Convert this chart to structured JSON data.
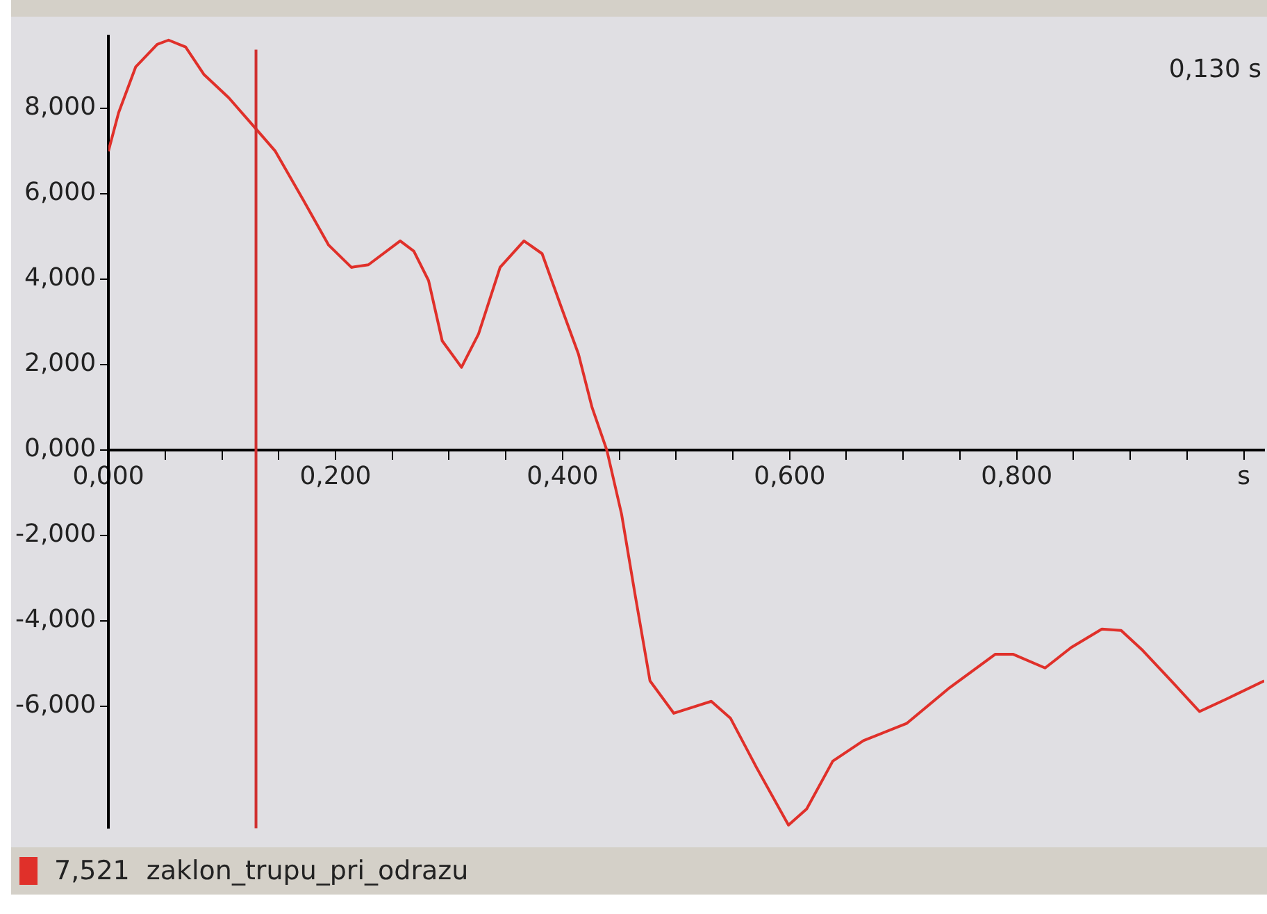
{
  "chart_data": {
    "type": "line",
    "annotations": [
      "7,521",
      "0,130 s"
    ],
    "x": [
      0,
      0.009,
      0.024,
      0.043,
      0.053,
      0.068,
      0.084,
      0.106,
      0.13,
      0.147,
      0.172,
      0.194,
      0.214,
      0.229,
      0.257,
      0.269,
      0.282,
      0.294,
      0.311,
      0.326,
      0.345,
      0.366,
      0.382,
      0.399,
      0.414,
      0.426,
      0.439,
      0.452,
      0.464,
      0.477,
      0.498,
      0.531,
      0.548,
      0.571,
      0.599,
      0.615,
      0.638,
      0.665,
      0.703,
      0.741,
      0.781,
      0.797,
      0.825,
      0.848,
      0.875,
      0.892,
      0.911,
      0.936,
      0.961,
      0.986,
      1.018
    ],
    "series": [
      {
        "name": "zaklon_trupu_pri_odrazu",
        "color": "#e0302a",
        "values": [
          7.0,
          7.9,
          8.97,
          9.5,
          9.6,
          9.44,
          8.8,
          8.25,
          7.52,
          7.0,
          5.84,
          4.8,
          4.28,
          4.34,
          4.9,
          4.66,
          3.97,
          2.56,
          1.94,
          2.72,
          4.28,
          4.9,
          4.6,
          3.34,
          2.25,
          1.0,
          0,
          -1.5,
          -3.4,
          -5.4,
          -6.16,
          -5.88,
          -6.28,
          -7.44,
          -8.78,
          -8.4,
          -7.28,
          -6.8,
          -6.4,
          -5.56,
          -4.78,
          -4.78,
          -5.1,
          -4.62,
          -4.19,
          -4.22,
          -4.69,
          -5.4,
          -6.12,
          -5.81,
          -5.4
        ]
      }
    ],
    "xlim": [
      0,
      1.018
    ],
    "ylim": [
      -8.85,
      9.7
    ],
    "xticks": [
      {
        "value": 0,
        "label": "0,000"
      },
      {
        "value": 0.05,
        "label": null
      },
      {
        "value": 0.1,
        "label": null
      },
      {
        "value": 0.15,
        "label": null
      },
      {
        "value": 0.2,
        "label": "0,200"
      },
      {
        "value": 0.25,
        "label": null
      },
      {
        "value": 0.3,
        "label": null
      },
      {
        "value": 0.35,
        "label": null
      },
      {
        "value": 0.4,
        "label": "0,400"
      },
      {
        "value": 0.45,
        "label": null
      },
      {
        "value": 0.5,
        "label": null
      },
      {
        "value": 0.55,
        "label": null
      },
      {
        "value": 0.6,
        "label": "0,600"
      },
      {
        "value": 0.65,
        "label": null
      },
      {
        "value": 0.7,
        "label": null
      },
      {
        "value": 0.75,
        "label": null
      },
      {
        "value": 0.8,
        "label": "0,800"
      },
      {
        "value": 0.85,
        "label": null
      },
      {
        "value": 0.9,
        "label": null
      },
      {
        "value": 0.95,
        "label": null
      },
      {
        "value": 1.0,
        "label": "s"
      }
    ],
    "yticks": [
      {
        "value": -6,
        "label": "-6,000"
      },
      {
        "value": -4,
        "label": "-4,000"
      },
      {
        "value": -2,
        "label": "-2,000"
      },
      {
        "value": 0,
        "label": "0,000"
      },
      {
        "value": 2,
        "label": "2,000"
      },
      {
        "value": 4,
        "label": "4,000"
      },
      {
        "value": 6,
        "label": "6,000"
      },
      {
        "value": 8,
        "label": "8,000"
      }
    ],
    "ref_lines": [
      {
        "axis": "x",
        "value": 0.13,
        "color": "#d03030"
      }
    ],
    "grid": false,
    "legend": "bottom",
    "marker": "none",
    "line_style": "solid"
  }
}
